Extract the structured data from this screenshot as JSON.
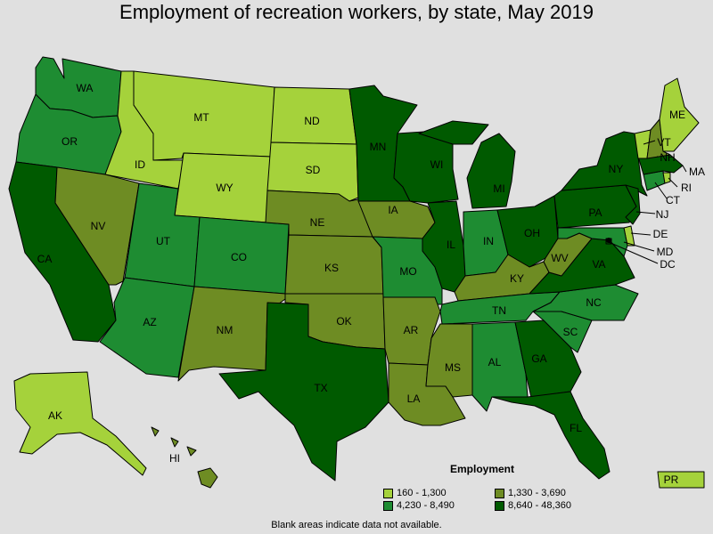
{
  "title": "Employment of recreation workers, by state, May 2019",
  "colors": {
    "bin1": "#a5d23b",
    "bin2": "#6e8c23",
    "bin3": "#1e8c32",
    "bin4": "#005a00",
    "background": "#e0e0e0"
  },
  "legend": {
    "title": "Employment",
    "bins": [
      {
        "label": "160 - 1,300",
        "color": "#a5d23b"
      },
      {
        "label": "1,330 - 3,690",
        "color": "#6e8c23"
      },
      {
        "label": "4,230 - 8,490",
        "color": "#1e8c32"
      },
      {
        "label": "8,640 - 48,360",
        "color": "#005a00"
      }
    ]
  },
  "footnote": "Blank areas indicate data not available.",
  "states": {
    "WA": {
      "label": "WA",
      "bin": 3
    },
    "OR": {
      "label": "OR",
      "bin": 3
    },
    "CA": {
      "label": "CA",
      "bin": 4
    },
    "ID": {
      "label": "ID",
      "bin": 1
    },
    "NV": {
      "label": "NV",
      "bin": 2
    },
    "MT": {
      "label": "MT",
      "bin": 1
    },
    "WY": {
      "label": "WY",
      "bin": 1
    },
    "UT": {
      "label": "UT",
      "bin": 3
    },
    "AZ": {
      "label": "AZ",
      "bin": 3
    },
    "CO": {
      "label": "CO",
      "bin": 3
    },
    "NM": {
      "label": "NM",
      "bin": 2
    },
    "ND": {
      "label": "ND",
      "bin": 1
    },
    "SD": {
      "label": "SD",
      "bin": 1
    },
    "NE": {
      "label": "NE",
      "bin": 2
    },
    "KS": {
      "label": "KS",
      "bin": 2
    },
    "OK": {
      "label": "OK",
      "bin": 2
    },
    "TX": {
      "label": "TX",
      "bin": 4
    },
    "MN": {
      "label": "MN",
      "bin": 4
    },
    "IA": {
      "label": "IA",
      "bin": 2
    },
    "MO": {
      "label": "MO",
      "bin": 3
    },
    "AR": {
      "label": "AR",
      "bin": 2
    },
    "LA": {
      "label": "LA",
      "bin": 2
    },
    "WI": {
      "label": "WI",
      "bin": 4
    },
    "IL": {
      "label": "IL",
      "bin": 4
    },
    "MI": {
      "label": "MI",
      "bin": 4
    },
    "IN": {
      "label": "IN",
      "bin": 3
    },
    "OH": {
      "label": "OH",
      "bin": 4
    },
    "KY": {
      "label": "KY",
      "bin": 2
    },
    "TN": {
      "label": "TN",
      "bin": 3
    },
    "MS": {
      "label": "MS",
      "bin": 2
    },
    "AL": {
      "label": "AL",
      "bin": 3
    },
    "GA": {
      "label": "GA",
      "bin": 4
    },
    "FL": {
      "label": "FL",
      "bin": 4
    },
    "SC": {
      "label": "SC",
      "bin": 3
    },
    "NC": {
      "label": "NC",
      "bin": 3
    },
    "VA": {
      "label": "VA",
      "bin": 4
    },
    "WV": {
      "label": "WV",
      "bin": 2
    },
    "PA": {
      "label": "PA",
      "bin": 4
    },
    "NY": {
      "label": "NY",
      "bin": 4
    },
    "NJ": {
      "label": "NJ",
      "bin": 4
    },
    "DE": {
      "label": "DE",
      "bin": 1
    },
    "MD": {
      "label": "MD",
      "bin": 3
    },
    "DC": {
      "label": "DC",
      "bin": 4
    },
    "CT": {
      "label": "CT",
      "bin": 3
    },
    "RI": {
      "label": "RI",
      "bin": 1
    },
    "MA": {
      "label": "MA",
      "bin": 4
    },
    "VT": {
      "label": "VT",
      "bin": 1
    },
    "NH": {
      "label": "NH",
      "bin": 2
    },
    "ME": {
      "label": "ME",
      "bin": 1
    },
    "AK": {
      "label": "AK",
      "bin": 1
    },
    "HI": {
      "label": "HI",
      "bin": 2
    },
    "PR": {
      "label": "PR",
      "bin": 1
    }
  }
}
